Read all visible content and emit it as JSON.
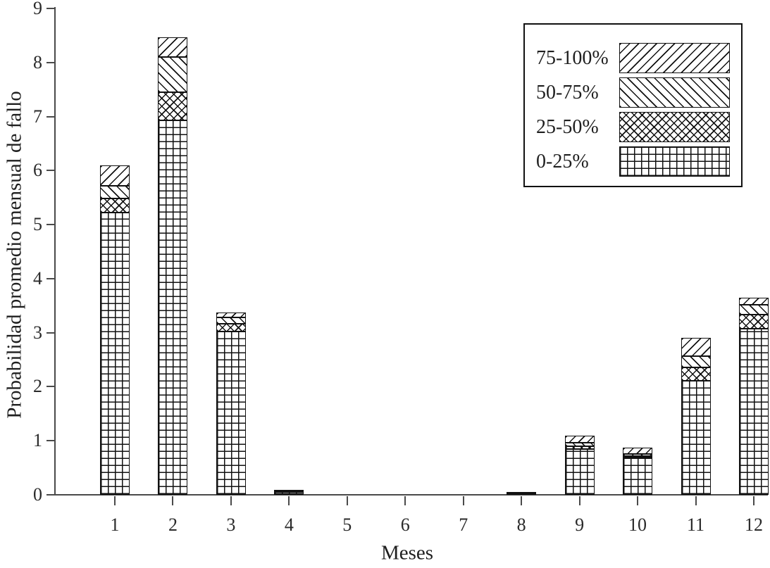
{
  "colors": {
    "background": "#ffffff",
    "ink": "#1f1f1f",
    "axis": "#4a4a4a",
    "hatch": "#111111"
  },
  "chart_data": {
    "type": "bar",
    "stacked": true,
    "title": "",
    "xlabel": "Meses",
    "ylabel": "Probabilidad promedio mensual de fallo",
    "categories": [
      "1",
      "2",
      "3",
      "4",
      "5",
      "6",
      "7",
      "8",
      "9",
      "10",
      "11",
      "12"
    ],
    "series": [
      {
        "name": "0-25%",
        "pattern": "grid",
        "values": [
          5.22,
          6.93,
          3.02,
          0.05,
          0,
          0,
          0,
          0.02,
          0.85,
          0.69,
          2.11,
          3.07
        ]
      },
      {
        "name": "25-50%",
        "pattern": "xdiag",
        "values": [
          0.26,
          0.52,
          0.14,
          0.01,
          0,
          0,
          0,
          0.01,
          0.05,
          0.03,
          0.25,
          0.26
        ]
      },
      {
        "name": "50-75%",
        "pattern": "bslash",
        "values": [
          0.24,
          0.65,
          0.12,
          0.01,
          0,
          0,
          0,
          0.0,
          0.07,
          0.04,
          0.21,
          0.19
        ]
      },
      {
        "name": "75-100%",
        "pattern": "fslash",
        "values": [
          0.37,
          0.37,
          0.09,
          0.01,
          0,
          0,
          0,
          0.01,
          0.13,
          0.11,
          0.33,
          0.13
        ]
      }
    ],
    "bar_totals": [
      6.09,
      8.47,
      3.37,
      0.08,
      0,
      0,
      0,
      0.04,
      1.1,
      0.87,
      2.9,
      3.65
    ],
    "ylim": [
      0,
      9
    ],
    "yticks": [
      "0",
      "1",
      "2",
      "3",
      "4",
      "5",
      "6",
      "7",
      "8",
      "9"
    ],
    "grid": false,
    "legend": {
      "position": "top-right",
      "entries": [
        {
          "label": "75-100%",
          "pattern": "fslash"
        },
        {
          "label": "50-75%",
          "pattern": "bslash"
        },
        {
          "label": "25-50%",
          "pattern": "xdiag"
        },
        {
          "label": "0-25%",
          "pattern": "grid"
        }
      ]
    }
  }
}
